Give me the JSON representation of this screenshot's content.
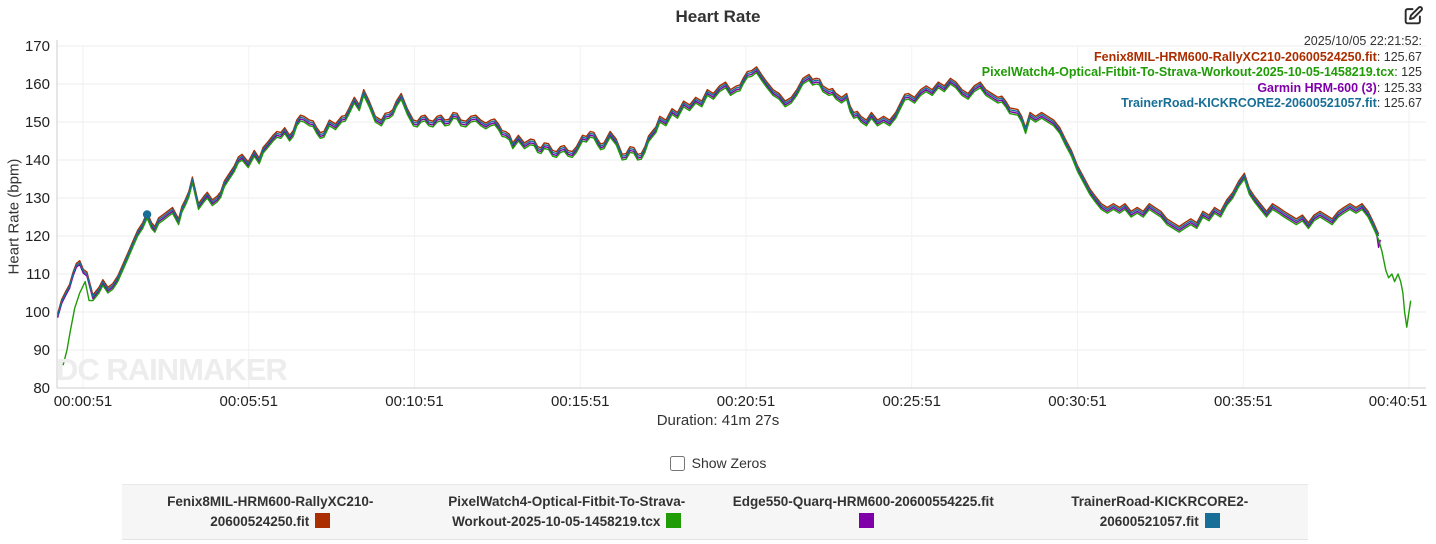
{
  "header": {
    "title": "Heart Rate"
  },
  "tooltip": {
    "timestamp": "2025/10/05 22:21:52:",
    "entries": [
      {
        "label": "Fenix8MIL-HRM600-RallyXC210-20600524250.fit",
        "value": "125.67",
        "color": "#AB2E00"
      },
      {
        "label": "PixelWatch4-Optical-Fitbit-To-Strava-Workout-2025-10-05-1458219.tcx",
        "value": "125",
        "color": "#1F9C06"
      },
      {
        "label": "Garmin HRM-600 (3)",
        "value": "125.33",
        "color": "#7F00A8"
      },
      {
        "label": "TrainerRoad-KICKRCORE2-20600521057.fit",
        "value": "125.67",
        "color": "#176E96"
      }
    ]
  },
  "controls": {
    "show_zeros_label": "Show Zeros",
    "show_zeros_checked": false
  },
  "watermark": "DC RAINMAKER",
  "legend": {
    "items": [
      {
        "label": "Fenix8MIL-HRM600-RallyXC210-20600524250.fit",
        "color": "#AB2E00"
      },
      {
        "label": "PixelWatch4-Optical-Fitbit-To-Strava-Workout-2025-10-05-1458219.tcx",
        "color": "#1F9C06"
      },
      {
        "label": "Edge550-Quarq-HRM600-20600554225.fit",
        "color": "#7F00A8"
      },
      {
        "label": "TrainerRoad-KICKRCORE2-20600521057.fit",
        "color": "#176E96"
      }
    ]
  },
  "chart_data": {
    "type": "line",
    "title": "Heart Rate",
    "ylabel": "Heart Rate (bpm)",
    "xlabel": "Duration: 41m 27s",
    "ylim": [
      80,
      170
    ],
    "y_ticks": [
      170,
      160,
      150,
      140,
      130,
      120,
      110,
      100,
      90,
      80
    ],
    "x_tick_labels": [
      "00:00:51",
      "00:05:51",
      "00:10:51",
      "00:15:51",
      "00:20:51",
      "00:25:51",
      "00:30:51",
      "00:35:51",
      "00:40:51"
    ],
    "x_tick_seconds": [
      51,
      351,
      651,
      951,
      1251,
      1551,
      1851,
      2151,
      2451
    ],
    "grid": true,
    "legend_position": "bottom",
    "hover_point": {
      "t": 167,
      "hr": 125.67,
      "color": "#176E96"
    },
    "base_points": [
      [
        5,
        99
      ],
      [
        20,
        105
      ],
      [
        33,
        110
      ],
      [
        45,
        113
      ],
      [
        58,
        110
      ],
      [
        69,
        104
      ],
      [
        80,
        106
      ],
      [
        87,
        108
      ],
      [
        96,
        106
      ],
      [
        105,
        107
      ],
      [
        114,
        109
      ],
      [
        123,
        112
      ],
      [
        132,
        115
      ],
      [
        141,
        118
      ],
      [
        150,
        121
      ],
      [
        159,
        123
      ],
      [
        167,
        125.7
      ],
      [
        175,
        123
      ],
      [
        181,
        122
      ],
      [
        195,
        125
      ],
      [
        204,
        126
      ],
      [
        213,
        127
      ],
      [
        224,
        124
      ],
      [
        236,
        129
      ],
      [
        249,
        135
      ],
      [
        260,
        128
      ],
      [
        270,
        130
      ],
      [
        276,
        131
      ],
      [
        285,
        129
      ],
      [
        294,
        130
      ],
      [
        307,
        134
      ],
      [
        316,
        136
      ],
      [
        325,
        138
      ],
      [
        339,
        141
      ],
      [
        350,
        139
      ],
      [
        361,
        142
      ],
      [
        370,
        140
      ],
      [
        384,
        144
      ],
      [
        395,
        146
      ],
      [
        402,
        147
      ],
      [
        416,
        148
      ],
      [
        425,
        146
      ],
      [
        438,
        150
      ],
      [
        451,
        151
      ],
      [
        461,
        150
      ],
      [
        474,
        148
      ],
      [
        487,
        147
      ],
      [
        497,
        150
      ],
      [
        508,
        149
      ],
      [
        519,
        151
      ],
      [
        532,
        153
      ],
      [
        542,
        156
      ],
      [
        551,
        154
      ],
      [
        559,
        158
      ],
      [
        569,
        155
      ],
      [
        580,
        151
      ],
      [
        591,
        150
      ],
      [
        605,
        152
      ],
      [
        618,
        155
      ],
      [
        627,
        157
      ],
      [
        638,
        153
      ],
      [
        649,
        150
      ],
      [
        663,
        151
      ],
      [
        677,
        150
      ],
      [
        692,
        151
      ],
      [
        706,
        150
      ],
      [
        721,
        152
      ],
      [
        735,
        150
      ],
      [
        753,
        151
      ],
      [
        771,
        150
      ],
      [
        789,
        150
      ],
      [
        803,
        149
      ],
      [
        816,
        147
      ],
      [
        829,
        144
      ],
      [
        839,
        146
      ],
      [
        850,
        144
      ],
      [
        861,
        145
      ],
      [
        874,
        143
      ],
      [
        886,
        144
      ],
      [
        901,
        142
      ],
      [
        915,
        143
      ],
      [
        929,
        142
      ],
      [
        944,
        143
      ],
      [
        955,
        146
      ],
      [
        969,
        147
      ],
      [
        982,
        145
      ],
      [
        994,
        144
      ],
      [
        1005,
        147
      ],
      [
        1016,
        145
      ],
      [
        1027,
        141
      ],
      [
        1041,
        143
      ],
      [
        1055,
        141
      ],
      [
        1068,
        143
      ],
      [
        1081,
        147
      ],
      [
        1095,
        151
      ],
      [
        1106,
        150
      ],
      [
        1117,
        153
      ],
      [
        1127,
        152
      ],
      [
        1138,
        155
      ],
      [
        1149,
        154
      ],
      [
        1160,
        156
      ],
      [
        1171,
        155
      ],
      [
        1181,
        158
      ],
      [
        1192,
        157
      ],
      [
        1203,
        159
      ],
      [
        1214,
        160
      ],
      [
        1223,
        158
      ],
      [
        1234,
        159
      ],
      [
        1246,
        161
      ],
      [
        1261,
        163
      ],
      [
        1270,
        164
      ],
      [
        1279,
        162
      ],
      [
        1289,
        160
      ],
      [
        1300,
        158
      ],
      [
        1311,
        157
      ],
      [
        1322,
        155
      ],
      [
        1333,
        156
      ],
      [
        1343,
        158
      ],
      [
        1354,
        161
      ],
      [
        1365,
        162
      ],
      [
        1378,
        161
      ],
      [
        1390,
        159
      ],
      [
        1401,
        158
      ],
      [
        1414,
        157
      ],
      [
        1424,
        156
      ],
      [
        1433,
        157
      ],
      [
        1446,
        152
      ],
      [
        1459,
        151
      ],
      [
        1469,
        150
      ],
      [
        1478,
        152
      ],
      [
        1489,
        150
      ],
      [
        1500,
        151
      ],
      [
        1511,
        150
      ],
      [
        1522,
        152
      ],
      [
        1532,
        155
      ],
      [
        1545,
        157
      ],
      [
        1556,
        156
      ],
      [
        1567,
        158
      ],
      [
        1577,
        159
      ],
      [
        1588,
        158
      ],
      [
        1599,
        160
      ],
      [
        1610,
        159
      ],
      [
        1621,
        161
      ],
      [
        1631,
        160
      ],
      [
        1642,
        158
      ],
      [
        1653,
        157
      ],
      [
        1664,
        159
      ],
      [
        1675,
        160
      ],
      [
        1685,
        158
      ],
      [
        1696,
        157
      ],
      [
        1707,
        156
      ],
      [
        1721,
        155
      ],
      [
        1736,
        153
      ],
      [
        1750,
        151
      ],
      [
        1757,
        148
      ],
      [
        1765,
        152
      ],
      [
        1775,
        151
      ],
      [
        1786,
        152
      ],
      [
        1797,
        151
      ],
      [
        1808,
        150
      ],
      [
        1819,
        148
      ],
      [
        1829,
        145
      ],
      [
        1840,
        142
      ],
      [
        1851,
        138
      ],
      [
        1862,
        135
      ],
      [
        1873,
        132
      ],
      [
        1883,
        130
      ],
      [
        1894,
        128
      ],
      [
        1905,
        127
      ],
      [
        1916,
        128
      ],
      [
        1927,
        127
      ],
      [
        1937,
        128
      ],
      [
        1948,
        126
      ],
      [
        1959,
        127
      ],
      [
        1970,
        126
      ],
      [
        1981,
        128
      ],
      [
        1991,
        127
      ],
      [
        2002,
        126
      ],
      [
        2013,
        124
      ],
      [
        2024,
        123
      ],
      [
        2035,
        122
      ],
      [
        2045,
        123
      ],
      [
        2056,
        124
      ],
      [
        2067,
        123
      ],
      [
        2078,
        126
      ],
      [
        2089,
        125
      ],
      [
        2099,
        127
      ],
      [
        2110,
        126
      ],
      [
        2121,
        129
      ],
      [
        2132,
        131
      ],
      [
        2143,
        134
      ],
      [
        2153,
        136
      ],
      [
        2162,
        132
      ],
      [
        2171,
        130
      ],
      [
        2182,
        128
      ],
      [
        2193,
        126
      ],
      [
        2204,
        128
      ],
      [
        2215,
        127
      ],
      [
        2225,
        126
      ],
      [
        2236,
        125
      ],
      [
        2247,
        124
      ],
      [
        2258,
        125
      ],
      [
        2269,
        123
      ],
      [
        2279,
        125
      ],
      [
        2290,
        126
      ],
      [
        2301,
        125
      ],
      [
        2312,
        124
      ],
      [
        2323,
        126
      ],
      [
        2333,
        127
      ],
      [
        2344,
        128
      ],
      [
        2355,
        127
      ],
      [
        2366,
        128
      ],
      [
        2377,
        126
      ],
      [
        2387,
        123
      ],
      [
        2396,
        120
      ]
    ],
    "series": [
      {
        "name": "Fenix8MIL-HRM600-RallyXC210-20600524250.fit",
        "color": "#AB2E00",
        "offset_bpm": 0.5,
        "use_base": [
          5,
          2396
        ],
        "prepend_points": [],
        "append_points": []
      },
      {
        "name": "Edge550-Quarq-HRM600-20600554225.fit",
        "color": "#7F00A8",
        "offset_bpm": -0.5,
        "use_base": [
          5,
          2387
        ],
        "prepend_points": [],
        "append_points": [
          [
            2392,
            121
          ],
          [
            2396,
            117
          ],
          [
            2399,
            119
          ]
        ]
      },
      {
        "name": "PixelWatch4-Optical-Fitbit-To-Strava-Workout-2025-10-05-1458219.tcx",
        "color": "#1F9C06",
        "offset_bpm": -1,
        "use_base": [
          80,
          2387
        ],
        "prepend_points": [
          [
            15,
            86
          ],
          [
            22,
            90
          ],
          [
            28,
            95
          ],
          [
            36,
            101
          ],
          [
            45,
            105
          ],
          [
            55,
            108
          ],
          [
            62,
            103
          ],
          [
            69,
            103
          ]
        ],
        "append_points": [
          [
            2396,
            119
          ],
          [
            2402,
            116
          ],
          [
            2409,
            111
          ],
          [
            2414,
            109
          ],
          [
            2420,
            110
          ],
          [
            2425,
            108
          ],
          [
            2431,
            110
          ],
          [
            2436,
            108
          ],
          [
            2440,
            105
          ],
          [
            2443,
            100
          ],
          [
            2447,
            96
          ],
          [
            2450,
            99
          ],
          [
            2454,
            103
          ]
        ]
      },
      {
        "name": "TrainerRoad-KICKRCORE2-20600521057.fit",
        "color": "#176E96",
        "offset_bpm": 0,
        "use_base": [
          5,
          2396
        ],
        "prepend_points": [],
        "append_points": []
      }
    ]
  }
}
